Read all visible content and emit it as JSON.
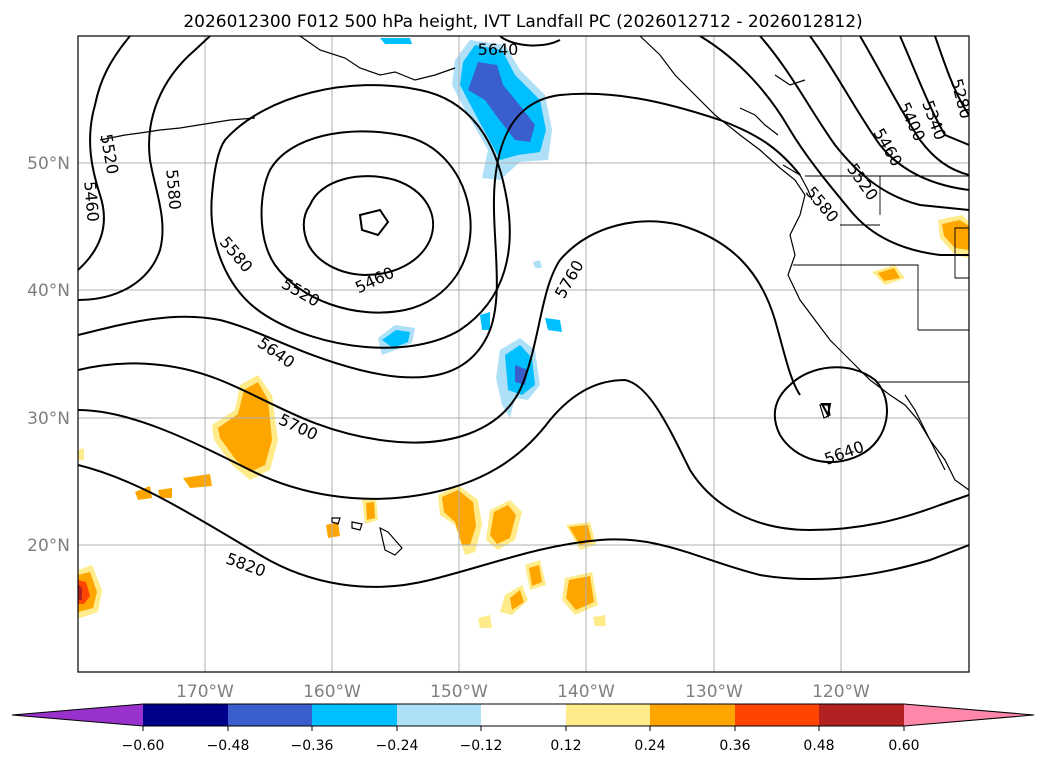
{
  "title": "2026012300 F012 500 hPa height, IVT Landfall PC (2026012712 - 2026012812)",
  "map": {
    "lat_labels": [
      "50°N",
      "40°N",
      "30°N",
      "20°N"
    ],
    "lon_labels": [
      "170°W",
      "160°W",
      "150°W",
      "140°W",
      "130°W",
      "120°W"
    ],
    "contour_labels": [
      "5640",
      "5520",
      "5460",
      "5580",
      "5580",
      "5520",
      "5460",
      "5760",
      "5640",
      "5700",
      "5820",
      "5640",
      "5580",
      "5520",
      "5460",
      "5400",
      "5340",
      "5280"
    ]
  },
  "colorbar": {
    "tick_labels": [
      "−0.60",
      "−0.48",
      "−0.36",
      "−0.24",
      "−0.12",
      "0.12",
      "0.24",
      "0.36",
      "0.48",
      "0.60"
    ],
    "colors": [
      "#9932CC",
      "#00008B",
      "#3A5FCD",
      "#00BFFF",
      "#AEE0F8",
      "#FFFFFF",
      "#FFEB8A",
      "#FFA500",
      "#FF4500",
      "#B22222",
      "#FF88AA"
    ]
  }
}
